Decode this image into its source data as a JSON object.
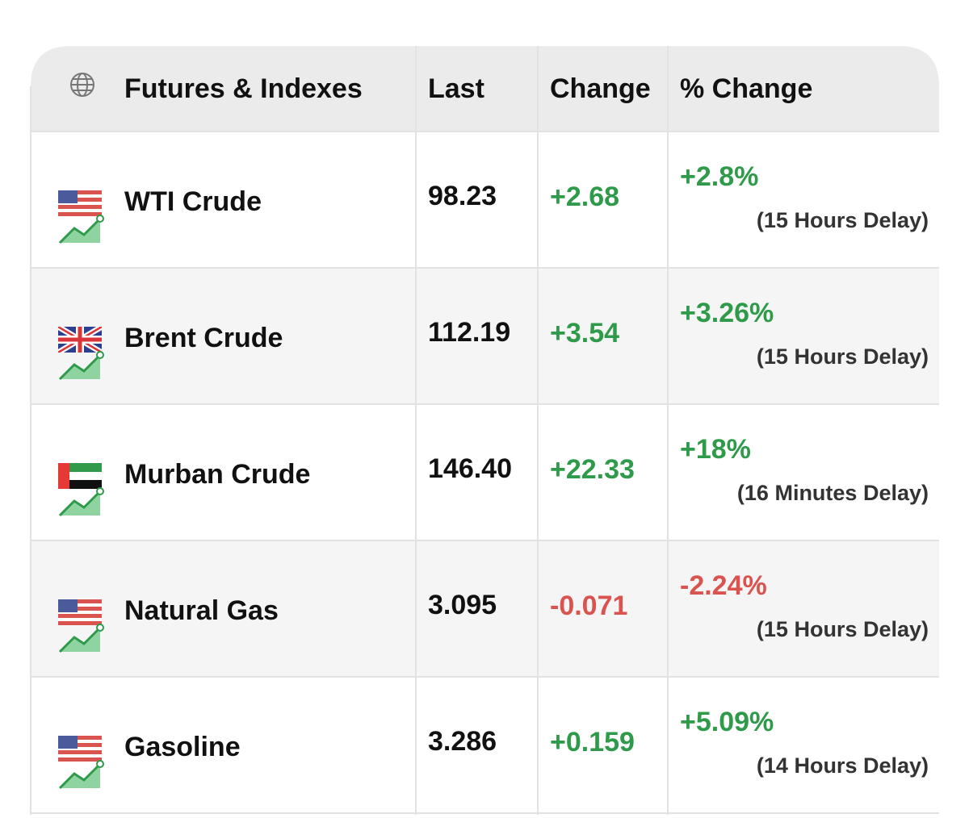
{
  "header": {
    "columns": [
      "Futures & Indexes",
      "Last",
      "Change",
      "% Change"
    ]
  },
  "table": {
    "rows": [
      [
        "WTI Crude",
        "98.23",
        "+2.68",
        "+2.8%",
        "(15 Hours Delay)"
      ],
      [
        "Brent Crude",
        "112.19",
        "+3.54",
        "+3.26%",
        "(15 Hours Delay)"
      ],
      [
        "Murban Crude",
        "146.40",
        "+22.33",
        "+18%",
        "(16 Minutes Delay)"
      ],
      [
        "Natural Gas",
        "3.095",
        "-0.071",
        "-2.24%",
        "(15 Hours Delay)"
      ],
      [
        "Gasoline",
        "3.286",
        "+0.159",
        "+5.09%",
        "(14 Hours Delay)"
      ]
    ]
  }
}
